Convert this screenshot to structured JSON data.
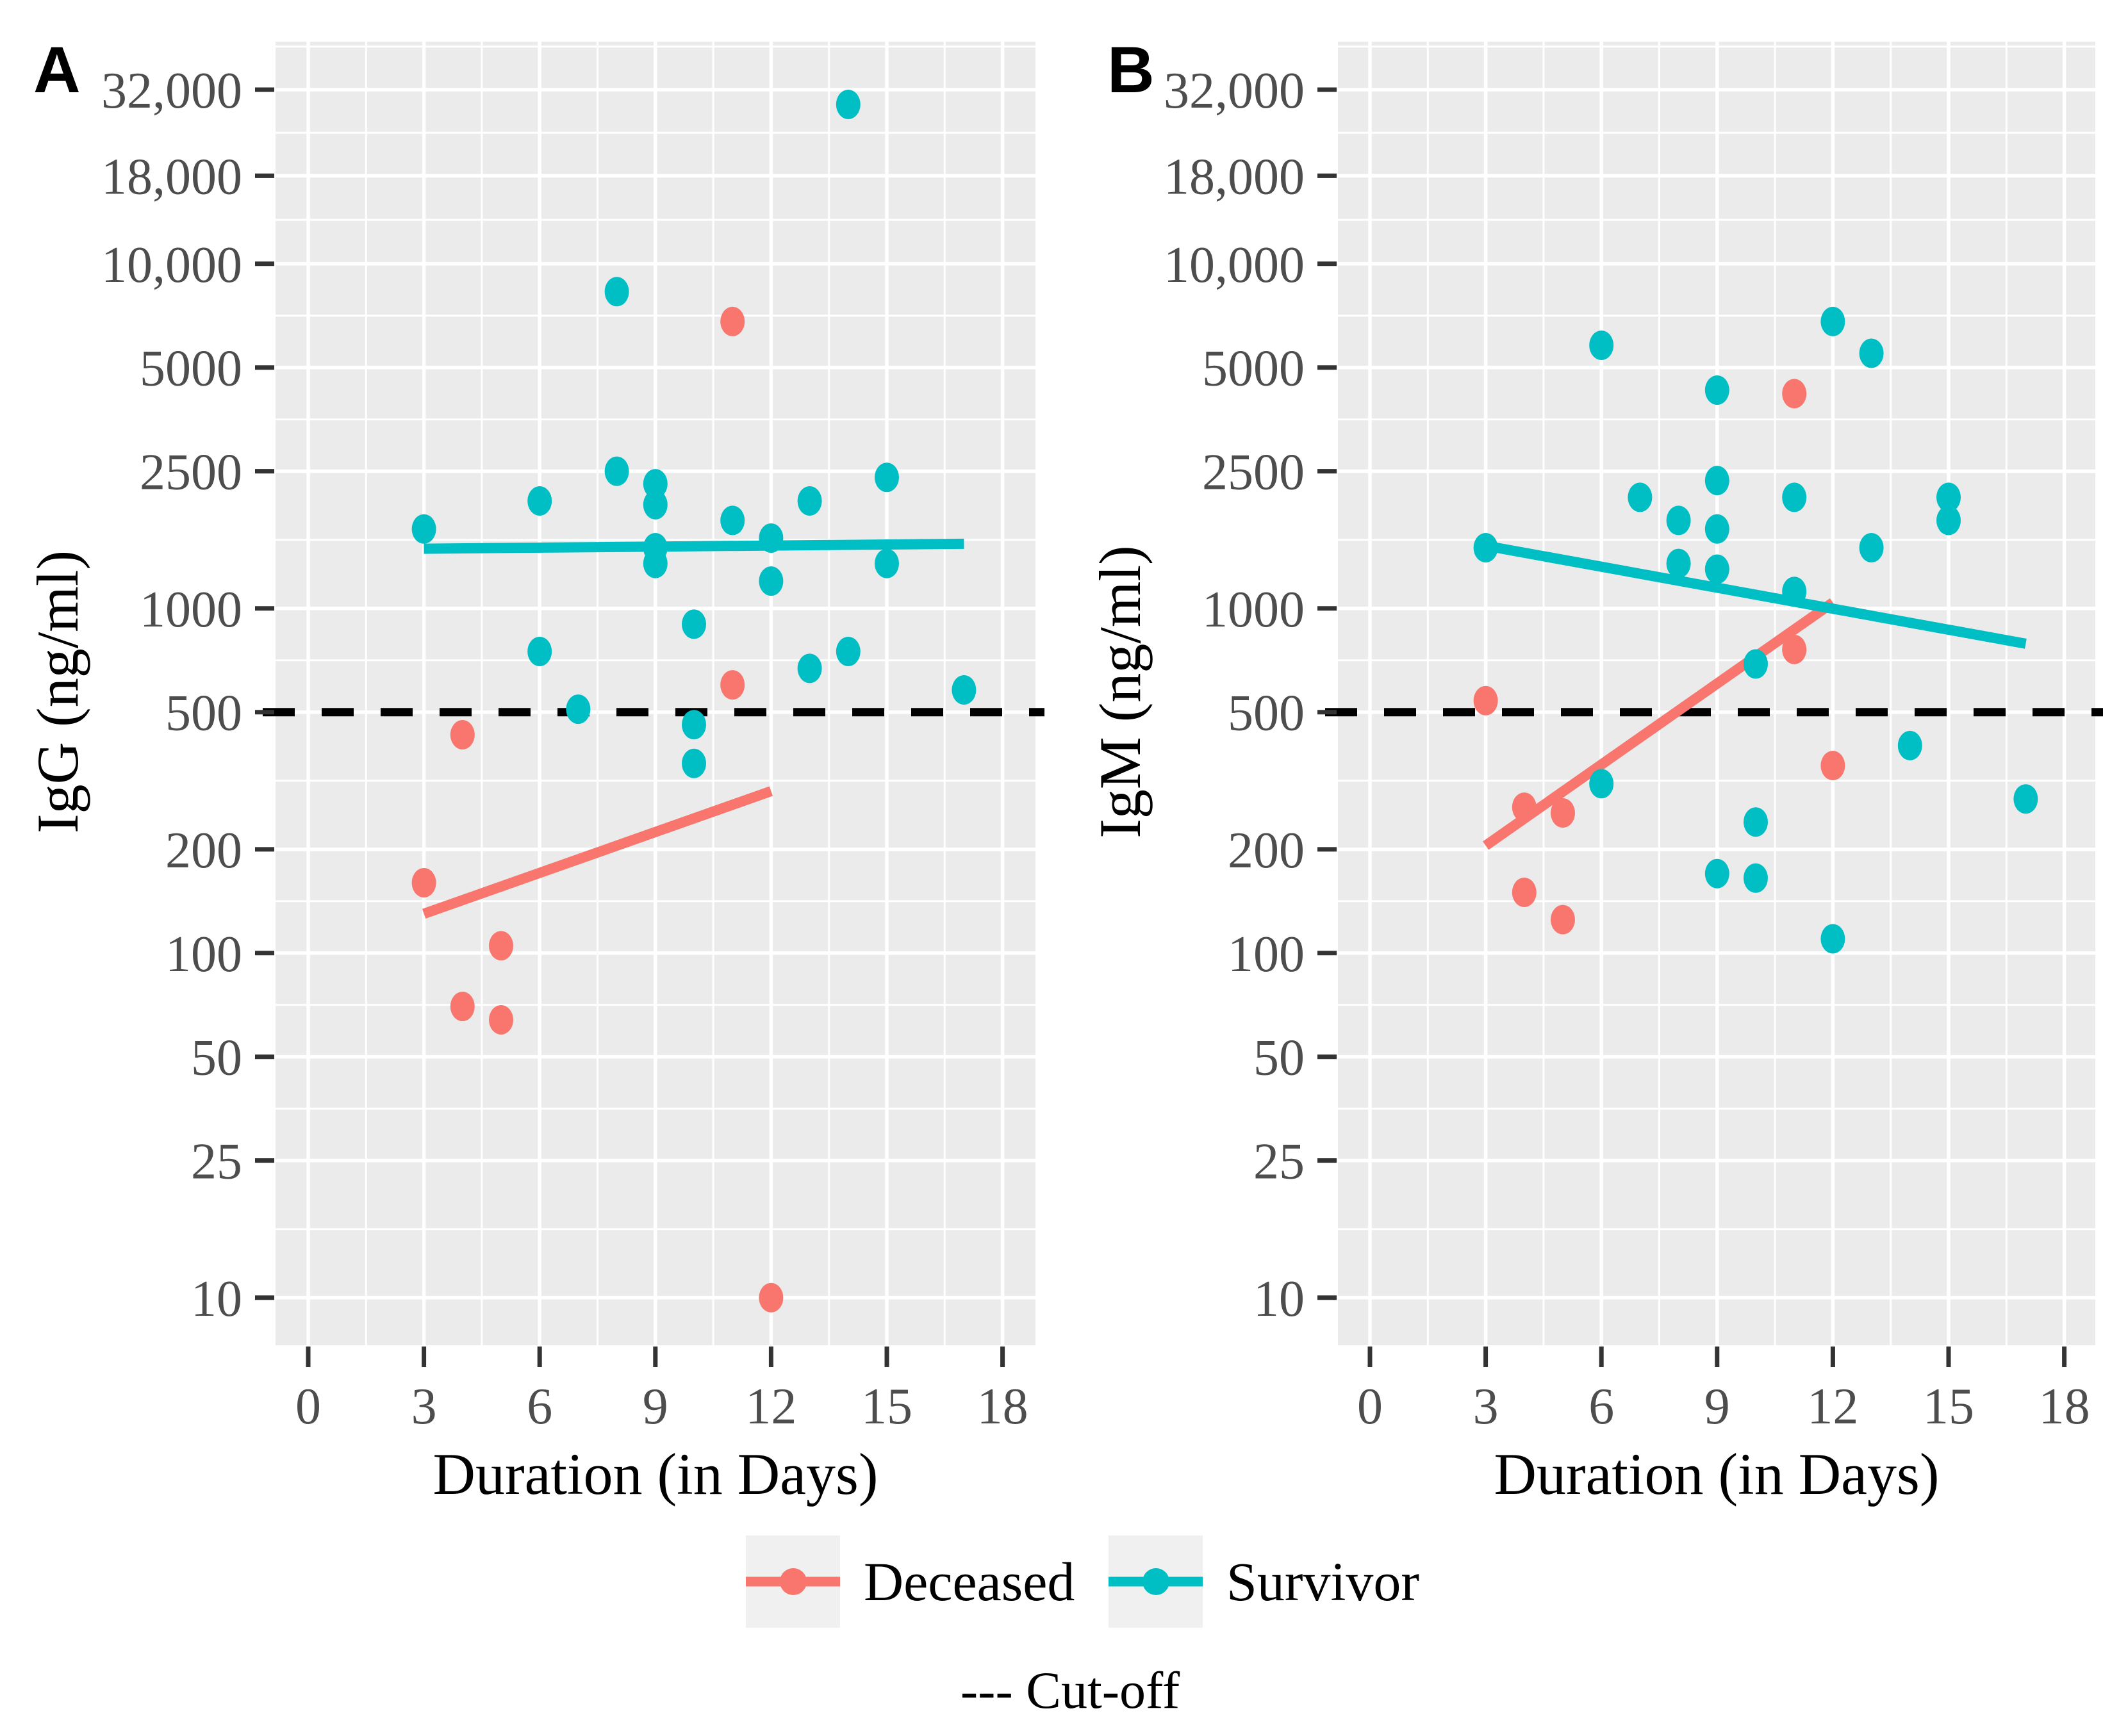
{
  "figure": {
    "panel_a": {
      "tag": "A",
      "y_axis_title": "IgG (ng/ml)",
      "x_axis_title": "Duration (in Days)"
    },
    "panel_b": {
      "tag": "B",
      "y_axis_title": "IgM (ng/ml)",
      "x_axis_title": "Duration (in Days)"
    },
    "legend": {
      "items": [
        {
          "label": "Deceased",
          "color": "#F8766D"
        },
        {
          "label": "Survivor",
          "color": "#00BFC4"
        }
      ]
    },
    "cutoff_note": "--- Cut-off",
    "colors": {
      "deceased": "#F8766D",
      "survivor": "#00BFC4",
      "panel_background": "#EBEBEB",
      "gridline": "#FFFFFF",
      "cutoff_line": "#000000",
      "tick_label": "#4D4D4D"
    }
  },
  "chart_data": [
    {
      "type": "scatter",
      "panel": "A",
      "title": "",
      "xlabel": "Duration (in Days)",
      "ylabel": "IgG (ng/ml)",
      "y_scale": "log10",
      "grid": true,
      "legend_position": "bottom",
      "xlim": [
        -0.85,
        18.85
      ],
      "ylim": [
        7.5,
        44000
      ],
      "x_ticks": [
        0,
        3,
        6,
        9,
        12,
        15,
        18
      ],
      "y_ticks": [
        {
          "value": 32000,
          "label": "32,000"
        },
        {
          "value": 18000,
          "label": "18,000"
        },
        {
          "value": 10000,
          "label": "10,000"
        },
        {
          "value": 5000,
          "label": "5000"
        },
        {
          "value": 2500,
          "label": "2500"
        },
        {
          "value": 1000,
          "label": "1000"
        },
        {
          "value": 500,
          "label": "500"
        },
        {
          "value": 200,
          "label": "200"
        },
        {
          "value": 100,
          "label": "100"
        },
        {
          "value": 50,
          "label": "50"
        },
        {
          "value": 25,
          "label": "25"
        },
        {
          "value": 10,
          "label": "10"
        }
      ],
      "cutoff_value": 500,
      "series": [
        {
          "name": "Deceased",
          "color": "#F8766D",
          "points": [
            [
              3,
              160
            ],
            [
              4,
              430
            ],
            [
              4,
              70
            ],
            [
              5,
              105
            ],
            [
              5,
              64
            ],
            [
              11,
              6800
            ],
            [
              11,
              600
            ],
            [
              12,
              10
            ]
          ],
          "trend_line": [
            [
              3,
              130
            ],
            [
              12,
              295
            ]
          ]
        },
        {
          "name": "Survivor",
          "color": "#00BFC4",
          "points": [
            [
              3,
              1700
            ],
            [
              6,
              2050
            ],
            [
              6,
              750
            ],
            [
              7,
              510
            ],
            [
              8,
              8300
            ],
            [
              8,
              2500
            ],
            [
              9,
              2300
            ],
            [
              9,
              2000
            ],
            [
              9,
              1500
            ],
            [
              9,
              1350
            ],
            [
              10,
              900
            ],
            [
              10,
              460
            ],
            [
              10,
              355
            ],
            [
              11,
              1800
            ],
            [
              12,
              1600
            ],
            [
              12,
              1200
            ],
            [
              13,
              2050
            ],
            [
              13,
              670
            ],
            [
              14,
              29000
            ],
            [
              14,
              750
            ],
            [
              15,
              2400
            ],
            [
              15,
              1350
            ],
            [
              17,
              580
            ]
          ],
          "trend_line": [
            [
              3,
              1490
            ],
            [
              17,
              1540
            ]
          ]
        }
      ]
    },
    {
      "type": "scatter",
      "panel": "B",
      "title": "",
      "xlabel": "Duration (in Days)",
      "ylabel": "IgM (ng/ml)",
      "y_scale": "log10",
      "grid": true,
      "legend_position": "bottom",
      "xlim": [
        -0.85,
        18.85
      ],
      "ylim": [
        7.5,
        44000
      ],
      "x_ticks": [
        0,
        3,
        6,
        9,
        12,
        15,
        18
      ],
      "y_ticks": [
        {
          "value": 32000,
          "label": "32,000"
        },
        {
          "value": 18000,
          "label": "18,000"
        },
        {
          "value": 10000,
          "label": "10,000"
        },
        {
          "value": 5000,
          "label": "5000"
        },
        {
          "value": 2500,
          "label": "2500"
        },
        {
          "value": 1000,
          "label": "1000"
        },
        {
          "value": 500,
          "label": "500"
        },
        {
          "value": 200,
          "label": "200"
        },
        {
          "value": 100,
          "label": "100"
        },
        {
          "value": 50,
          "label": "50"
        },
        {
          "value": 25,
          "label": "25"
        },
        {
          "value": 10,
          "label": "10"
        }
      ],
      "cutoff_value": 500,
      "series": [
        {
          "name": "Deceased",
          "color": "#F8766D",
          "points": [
            [
              3,
              540
            ],
            [
              4,
              265
            ],
            [
              4,
              150
            ],
            [
              5,
              255
            ],
            [
              5,
              125
            ],
            [
              11,
              4200
            ],
            [
              11,
              760
            ],
            [
              12,
              350
            ]
          ],
          "trend_line": [
            [
              3,
              205
            ],
            [
              12,
              1040
            ]
          ]
        },
        {
          "name": "Survivor",
          "color": "#00BFC4",
          "points": [
            [
              3,
              1500
            ],
            [
              6,
              5800
            ],
            [
              6,
              310
            ],
            [
              7,
              2100
            ],
            [
              8,
              1800
            ],
            [
              8,
              1350
            ],
            [
              9,
              4300
            ],
            [
              9,
              2350
            ],
            [
              9,
              1700
            ],
            [
              9,
              1300
            ],
            [
              9,
              170
            ],
            [
              10,
              690
            ],
            [
              10,
              240
            ],
            [
              10,
              165
            ],
            [
              11,
              2100
            ],
            [
              11,
              1120
            ],
            [
              12,
              6800
            ],
            [
              12,
              110
            ],
            [
              13,
              5500
            ],
            [
              13,
              1500
            ],
            [
              14,
              400
            ],
            [
              15,
              2100
            ],
            [
              15,
              1800
            ],
            [
              17,
              280
            ]
          ],
          "trend_line": [
            [
              3,
              1520
            ],
            [
              17,
              790
            ]
          ]
        }
      ]
    }
  ]
}
